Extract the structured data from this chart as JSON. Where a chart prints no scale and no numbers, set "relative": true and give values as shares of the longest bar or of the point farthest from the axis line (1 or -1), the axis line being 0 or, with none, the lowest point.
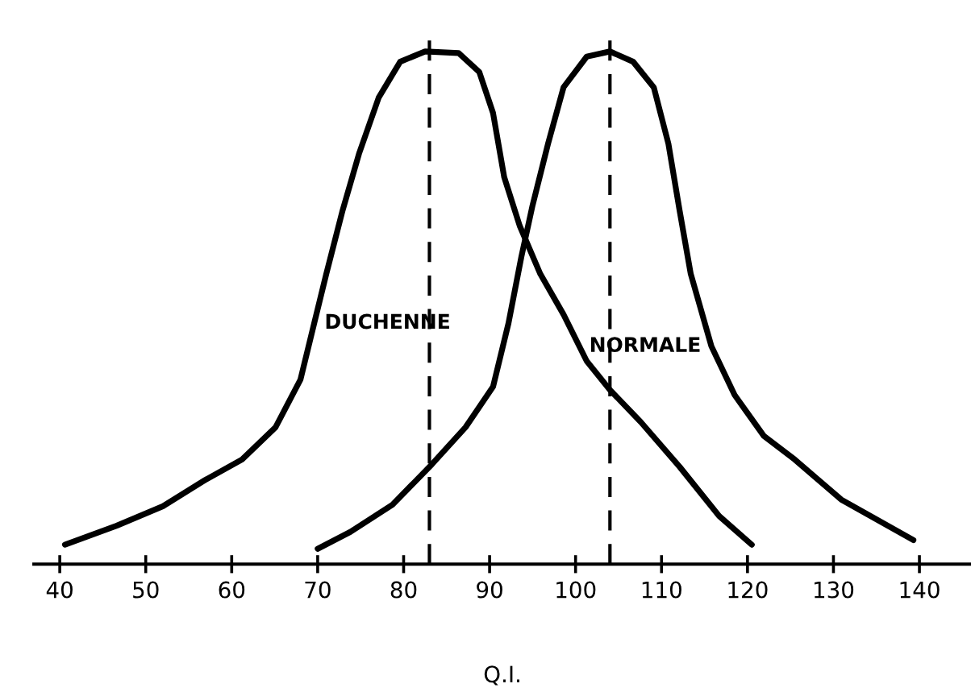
{
  "chart_data": {
    "type": "line",
    "relative": true,
    "xlabel": "Q.I.",
    "xlim": [
      37,
      146
    ],
    "xticks": [
      40,
      50,
      60,
      70,
      80,
      90,
      100,
      110,
      120,
      130,
      140
    ],
    "series": [
      {
        "name": "DUCHENNE",
        "color": "#000000",
        "x": [
          40.6,
          46.6,
          52,
          56.9,
          61.2,
          65.1,
          68,
          69.6,
          71,
          72.9,
          74.8,
          77.1,
          79.6,
          82.5,
          86.4,
          88.8,
          90.4,
          91.7,
          93.5,
          95.9,
          98.6,
          101.3,
          104,
          107.6,
          112.1,
          116.7,
          120.5
        ],
        "values": [
          0.038,
          0.075,
          0.113,
          0.164,
          0.204,
          0.267,
          0.36,
          0.47,
          0.566,
          0.69,
          0.8,
          0.91,
          0.98,
          1.0,
          0.997,
          0.96,
          0.88,
          0.755,
          0.66,
          0.566,
          0.487,
          0.396,
          0.34,
          0.277,
          0.19,
          0.094,
          0.038
        ]
      },
      {
        "name": "NORMALE",
        "color": "#000000",
        "x": [
          70,
          73.8,
          78.7,
          83.3,
          87.2,
          90.4,
          92.2,
          93.7,
          95,
          96.8,
          98.6,
          101.3,
          104,
          106.7,
          109.1,
          110.8,
          112.1,
          113.4,
          115.8,
          118.5,
          121.9,
          125.5,
          130.9,
          139.3
        ],
        "values": [
          0.03,
          0.063,
          0.116,
          0.195,
          0.267,
          0.346,
          0.47,
          0.6,
          0.7,
          0.82,
          0.93,
          0.99,
          1.0,
          0.98,
          0.93,
          0.82,
          0.69,
          0.566,
          0.425,
          0.33,
          0.25,
          0.204,
          0.126,
          0.047
        ]
      }
    ],
    "ref_lines": [
      {
        "axis": "x",
        "value": 83,
        "line_style": "dashed",
        "color": "#000000"
      },
      {
        "axis": "x",
        "value": 104,
        "line_style": "dashed",
        "color": "#000000"
      }
    ],
    "grid": false,
    "legend": false,
    "marker": "none",
    "line_style": "solid",
    "tick_labels": "x"
  }
}
